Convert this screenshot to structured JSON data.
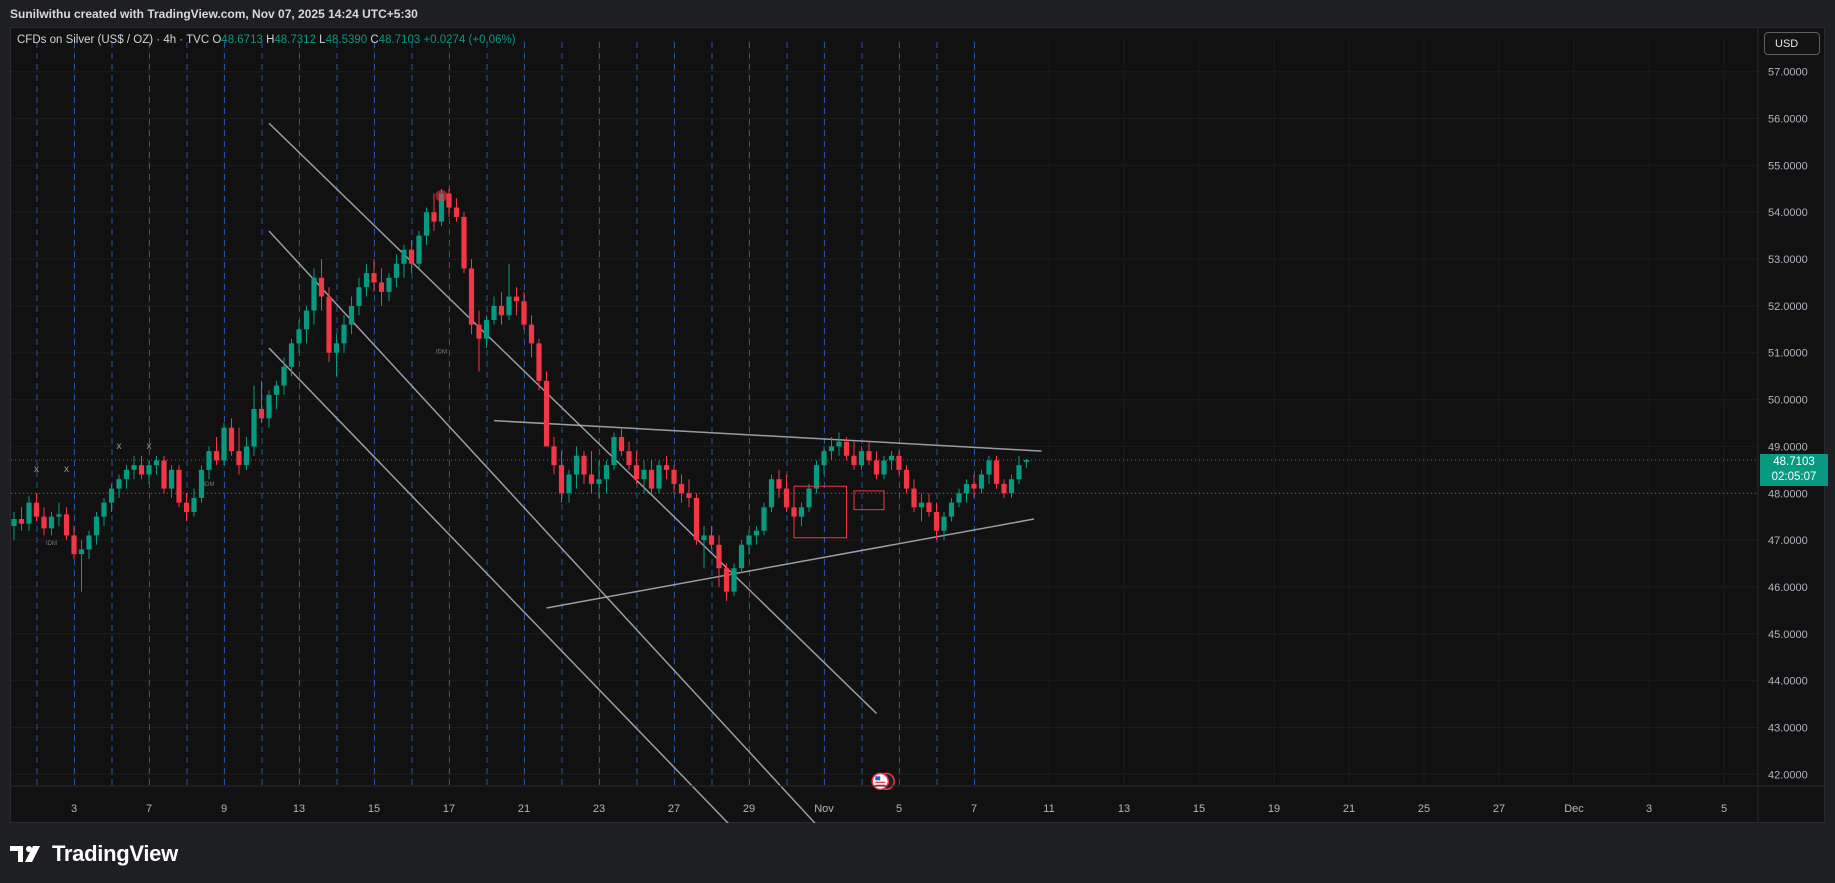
{
  "header": {
    "caption": "Sunilwithu created with TradingView.com, Nov 07, 2025 14:24 UTC+5:30"
  },
  "legend": {
    "symbol": "CFDs on Silver (US$ / OZ) · 4h · TVC",
    "o_label": "O",
    "o_value": "48.6713",
    "h_label": "H",
    "h_value": "48.7312",
    "l_label": "L",
    "l_value": "48.5390",
    "c_label": "C",
    "c_value": "48.7103",
    "change": "+0.0274 (+0.06%)"
  },
  "currency_button": "USD",
  "last_price": {
    "value": "48.7103",
    "countdown": "02:05:07"
  },
  "brand": {
    "name": "TradingView"
  },
  "colors": {
    "bg": "#111111",
    "up": "#089981",
    "down": "#f23645",
    "grid": "#1c1c1c",
    "session_line": "#2f6bd6",
    "trend_line": "#b2b5be",
    "label": "#b2b5be"
  },
  "chart_data": {
    "type": "candlestick",
    "timeframe": "4h",
    "symbol": "CFDs on Silver (US$ / OZ)",
    "ylim": [
      41.75,
      57.25
    ],
    "y_ticks": [
      "42.0000",
      "43.0000",
      "44.0000",
      "45.0000",
      "46.0000",
      "47.0000",
      "48.0000",
      "49.0000",
      "50.0000",
      "51.0000",
      "52.0000",
      "53.0000",
      "54.0000",
      "55.0000",
      "56.0000",
      "57.0000"
    ],
    "x_ticks": [
      "3",
      "7",
      "9",
      "13",
      "15",
      "17",
      "21",
      "23",
      "27",
      "29",
      "Nov",
      "5",
      "7",
      "11",
      "13",
      "15",
      "19",
      "21",
      "25",
      "27",
      "Dec",
      "3",
      "5"
    ],
    "x_tick_index": [
      8,
      18,
      28,
      38,
      48,
      58,
      68,
      78,
      88,
      98,
      108,
      118,
      128,
      138,
      148,
      158,
      168,
      178,
      188,
      198,
      208,
      218,
      228
    ],
    "candles_ohlc": [
      [
        47.3,
        47.6,
        47.0,
        47.45
      ],
      [
        47.45,
        47.7,
        47.2,
        47.35
      ],
      [
        47.35,
        47.95,
        47.2,
        47.8
      ],
      [
        47.8,
        48.0,
        47.4,
        47.5
      ],
      [
        47.5,
        47.7,
        47.1,
        47.25
      ],
      [
        47.25,
        47.6,
        47.1,
        47.5
      ],
      [
        47.5,
        47.8,
        47.3,
        47.55
      ],
      [
        47.55,
        47.7,
        47.0,
        47.1
      ],
      [
        47.1,
        47.3,
        46.6,
        46.7
      ],
      [
        46.7,
        47.0,
        45.9,
        46.8
      ],
      [
        46.8,
        47.2,
        46.6,
        47.1
      ],
      [
        47.1,
        47.6,
        46.9,
        47.5
      ],
      [
        47.5,
        47.9,
        47.3,
        47.8
      ],
      [
        47.8,
        48.2,
        47.6,
        48.1
      ],
      [
        48.1,
        48.4,
        47.9,
        48.3
      ],
      [
        48.3,
        48.6,
        48.1,
        48.5
      ],
      [
        48.5,
        48.8,
        48.3,
        48.6
      ],
      [
        48.6,
        48.8,
        48.3,
        48.4
      ],
      [
        48.4,
        48.7,
        48.2,
        48.6
      ],
      [
        48.6,
        48.8,
        48.4,
        48.7
      ],
      [
        48.7,
        48.8,
        48.0,
        48.1
      ],
      [
        48.1,
        48.6,
        47.9,
        48.5
      ],
      [
        48.5,
        48.6,
        47.7,
        47.8
      ],
      [
        47.8,
        48.0,
        47.4,
        47.6
      ],
      [
        47.6,
        48.1,
        47.5,
        47.9
      ],
      [
        47.9,
        48.6,
        47.8,
        48.5
      ],
      [
        48.5,
        49.0,
        48.3,
        48.9
      ],
      [
        48.9,
        49.2,
        48.6,
        48.7
      ],
      [
        48.7,
        49.5,
        48.6,
        49.4
      ],
      [
        49.4,
        49.6,
        48.8,
        48.9
      ],
      [
        48.9,
        49.4,
        48.4,
        48.6
      ],
      [
        48.6,
        49.2,
        48.5,
        49.0
      ],
      [
        49.0,
        50.3,
        48.8,
        49.8
      ],
      [
        49.8,
        50.4,
        49.5,
        49.6
      ],
      [
        49.6,
        50.2,
        49.4,
        50.1
      ],
      [
        50.1,
        50.4,
        49.8,
        50.3
      ],
      [
        50.3,
        50.9,
        50.1,
        50.7
      ],
      [
        50.7,
        51.3,
        50.5,
        51.2
      ],
      [
        51.2,
        51.7,
        51.0,
        51.5
      ],
      [
        51.5,
        52.0,
        51.2,
        51.9
      ],
      [
        51.9,
        52.8,
        51.6,
        52.6
      ],
      [
        52.6,
        53.0,
        51.9,
        52.2
      ],
      [
        52.2,
        52.4,
        50.8,
        51.0
      ],
      [
        51.0,
        51.4,
        50.5,
        51.2
      ],
      [
        51.2,
        51.8,
        51.0,
        51.6
      ],
      [
        51.6,
        52.2,
        51.4,
        52.0
      ],
      [
        52.0,
        52.6,
        51.8,
        52.4
      ],
      [
        52.4,
        52.9,
        52.2,
        52.7
      ],
      [
        52.7,
        53.0,
        52.3,
        52.5
      ],
      [
        52.5,
        52.8,
        52.0,
        52.3
      ],
      [
        52.3,
        52.7,
        52.1,
        52.6
      ],
      [
        52.6,
        53.1,
        52.4,
        52.9
      ],
      [
        52.9,
        53.3,
        52.6,
        53.2
      ],
      [
        53.2,
        53.4,
        52.7,
        52.9
      ],
      [
        52.9,
        53.6,
        52.8,
        53.5
      ],
      [
        53.5,
        54.1,
        53.3,
        54.0
      ],
      [
        54.0,
        54.4,
        53.6,
        53.8
      ],
      [
        53.8,
        54.5,
        53.7,
        54.4
      ],
      [
        54.4,
        54.5,
        53.9,
        54.1
      ],
      [
        54.1,
        54.3,
        53.8,
        53.9
      ],
      [
        53.9,
        54.0,
        52.7,
        52.8
      ],
      [
        52.8,
        53.0,
        51.4,
        51.6
      ],
      [
        51.6,
        51.9,
        50.6,
        51.3
      ],
      [
        51.3,
        51.8,
        51.1,
        51.7
      ],
      [
        51.7,
        52.2,
        51.6,
        52.0
      ],
      [
        52.0,
        52.3,
        51.6,
        51.8
      ],
      [
        51.8,
        52.9,
        51.7,
        52.2
      ],
      [
        52.2,
        52.4,
        51.8,
        52.1
      ],
      [
        52.1,
        52.3,
        51.5,
        51.6
      ],
      [
        51.6,
        51.8,
        50.9,
        51.2
      ],
      [
        51.2,
        51.3,
        50.2,
        50.4
      ],
      [
        50.4,
        50.6,
        49.0,
        49.0
      ],
      [
        49.0,
        49.2,
        48.4,
        48.6
      ],
      [
        48.6,
        48.9,
        47.8,
        48.0
      ],
      [
        48.0,
        48.5,
        47.8,
        48.4
      ],
      [
        48.4,
        49.0,
        48.1,
        48.8
      ],
      [
        48.8,
        48.9,
        48.2,
        48.4
      ],
      [
        48.4,
        48.9,
        48.0,
        48.2
      ],
      [
        48.2,
        48.7,
        47.9,
        48.3
      ],
      [
        48.3,
        48.7,
        48.0,
        48.6
      ],
      [
        48.6,
        49.3,
        48.5,
        49.2
      ],
      [
        49.2,
        49.4,
        48.8,
        48.9
      ],
      [
        48.9,
        49.1,
        48.5,
        48.6
      ],
      [
        48.6,
        48.9,
        48.2,
        48.3
      ],
      [
        48.3,
        48.7,
        48.0,
        48.5
      ],
      [
        48.5,
        48.7,
        48.0,
        48.1
      ],
      [
        48.1,
        48.7,
        48.0,
        48.6
      ],
      [
        48.6,
        48.8,
        48.3,
        48.5
      ],
      [
        48.5,
        48.6,
        48.0,
        48.2
      ],
      [
        48.2,
        48.4,
        47.8,
        48.0
      ],
      [
        48.0,
        48.3,
        47.7,
        47.9
      ],
      [
        47.9,
        48.0,
        46.9,
        47.0
      ],
      [
        47.0,
        47.3,
        46.4,
        47.1
      ],
      [
        47.1,
        47.3,
        46.8,
        46.9
      ],
      [
        46.9,
        47.1,
        46.0,
        46.4
      ],
      [
        46.4,
        46.5,
        45.7,
        45.9
      ],
      [
        45.9,
        46.5,
        45.8,
        46.4
      ],
      [
        46.4,
        47.0,
        46.3,
        46.9
      ],
      [
        46.9,
        47.2,
        46.7,
        47.1
      ],
      [
        47.1,
        47.3,
        46.9,
        47.2
      ],
      [
        47.2,
        47.8,
        47.1,
        47.7
      ],
      [
        47.7,
        48.4,
        47.6,
        48.3
      ],
      [
        48.3,
        48.5,
        47.9,
        48.1
      ],
      [
        48.1,
        48.4,
        47.6,
        47.7
      ],
      [
        47.7,
        47.9,
        47.4,
        47.5
      ],
      [
        47.5,
        47.8,
        47.3,
        47.7
      ],
      [
        47.7,
        48.2,
        47.6,
        48.1
      ],
      [
        48.1,
        48.7,
        48.0,
        48.6
      ],
      [
        48.6,
        49.0,
        48.4,
        48.9
      ],
      [
        48.9,
        49.2,
        48.7,
        49.0
      ],
      [
        49.0,
        49.3,
        48.8,
        49.1
      ],
      [
        49.1,
        49.2,
        48.7,
        48.8
      ],
      [
        48.8,
        49.1,
        48.5,
        48.6
      ],
      [
        48.6,
        49.0,
        48.5,
        48.9
      ],
      [
        48.9,
        49.1,
        48.6,
        48.7
      ],
      [
        48.7,
        48.9,
        48.3,
        48.4
      ],
      [
        48.4,
        48.8,
        48.3,
        48.7
      ],
      [
        48.7,
        48.9,
        48.5,
        48.8
      ],
      [
        48.8,
        48.9,
        48.4,
        48.5
      ],
      [
        48.5,
        48.6,
        48.0,
        48.1
      ],
      [
        48.1,
        48.3,
        47.6,
        47.7
      ],
      [
        47.7,
        48.0,
        47.4,
        47.8
      ],
      [
        47.8,
        48.0,
        47.5,
        47.6
      ],
      [
        47.6,
        47.8,
        47.0,
        47.2
      ],
      [
        47.2,
        47.6,
        47.0,
        47.5
      ],
      [
        47.5,
        47.9,
        47.4,
        47.8
      ],
      [
        47.8,
        48.1,
        47.7,
        48.0
      ],
      [
        48.0,
        48.3,
        47.8,
        48.2
      ],
      [
        48.2,
        48.4,
        47.9,
        48.1
      ],
      [
        48.1,
        48.5,
        48.0,
        48.4
      ],
      [
        48.4,
        48.8,
        48.2,
        48.7
      ],
      [
        48.7,
        48.8,
        48.1,
        48.2
      ],
      [
        48.2,
        48.3,
        47.9,
        48.0
      ],
      [
        48.0,
        48.4,
        47.9,
        48.3
      ],
      [
        48.3,
        48.8,
        48.2,
        48.6
      ],
      [
        48.6713,
        48.7312,
        48.539,
        48.7103
      ]
    ],
    "last_price": 48.7103,
    "session_level": 48.0,
    "annotations": {
      "marker_labels": [
        "x",
        "x",
        "x",
        "x"
      ],
      "idm_labels": [
        "IDM",
        "IDM",
        "IDM"
      ]
    },
    "trendlines_price": [
      {
        "from": [
          34.0,
          55.9
        ],
        "to": [
          115.0,
          43.3
        ]
      },
      {
        "from": [
          34.0,
          53.6
        ],
        "to": [
          110.0,
          40.4
        ]
      },
      {
        "from": [
          34.0,
          51.1
        ],
        "to": [
          104.0,
          39.5
        ]
      },
      {
        "from": [
          64.0,
          49.55
        ],
        "to": [
          137.0,
          48.9
        ]
      },
      {
        "from": [
          71.0,
          45.55
        ],
        "to": [
          136.0,
          47.45
        ]
      }
    ],
    "title": "",
    "xlabel": "",
    "ylabel": ""
  }
}
